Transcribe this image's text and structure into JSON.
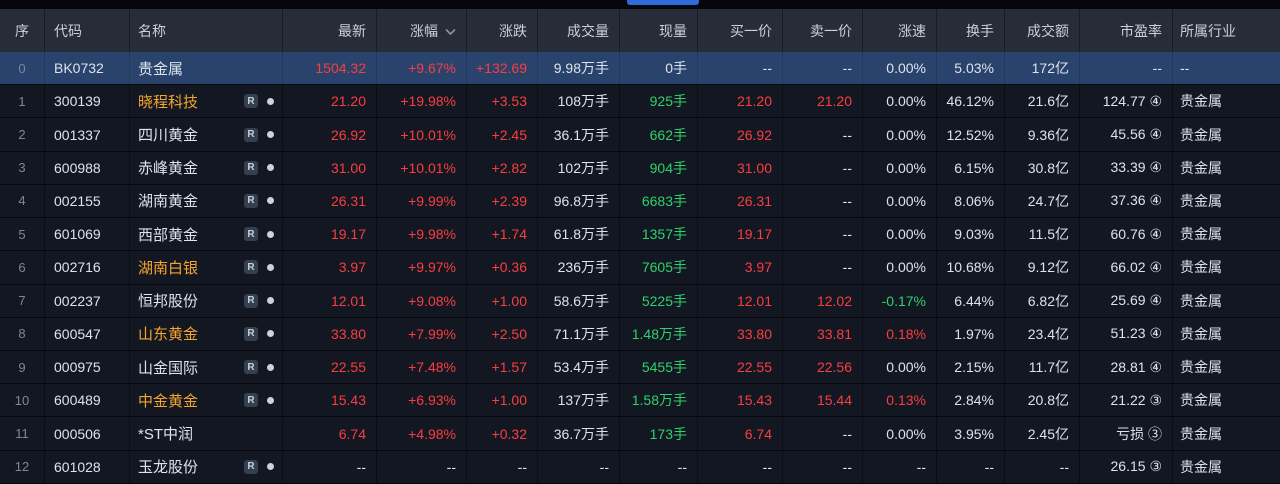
{
  "top_bar": {
    "active_tab_color": "#2f6bd9"
  },
  "colors": {
    "up_red": "#fa3d41",
    "down_green": "#2fd16c",
    "neutral_text": "#dde2ec",
    "highlight_name_orange": "#f6a62d",
    "selected_row_blue": "#29436c",
    "header_bg": "#272c39"
  },
  "table": {
    "r_badge_label": "R",
    "columns": [
      {
        "key": "seq",
        "label": "序"
      },
      {
        "key": "code",
        "label": "代码"
      },
      {
        "key": "name",
        "label": "名称"
      },
      {
        "key": "last",
        "label": "最新"
      },
      {
        "key": "change_pct",
        "label": "涨幅",
        "sort_icon": true
      },
      {
        "key": "change",
        "label": "涨跌"
      },
      {
        "key": "volume",
        "label": "成交量"
      },
      {
        "key": "cur_vol",
        "label": "现量"
      },
      {
        "key": "bid",
        "label": "买一价"
      },
      {
        "key": "ask",
        "label": "卖一价"
      },
      {
        "key": "speed",
        "label": "涨速"
      },
      {
        "key": "turnover",
        "label": "换手"
      },
      {
        "key": "amount",
        "label": "成交额"
      },
      {
        "key": "pe",
        "label": "市盈率"
      },
      {
        "key": "industry",
        "label": "所属行业"
      }
    ],
    "rows": [
      {
        "seq": "0",
        "code": "BK0732",
        "name": "贵金属",
        "name_color": "white",
        "r_badge": false,
        "dot": false,
        "selected": true,
        "cells": {
          "last": {
            "t": "1504.32",
            "c": "red"
          },
          "change_pct": {
            "t": "+9.67%",
            "c": "red"
          },
          "change": {
            "t": "+132.69",
            "c": "red"
          },
          "volume": {
            "t": "9.98万手",
            "c": "white"
          },
          "cur_vol": {
            "t": "0手",
            "c": "white"
          },
          "bid": {
            "t": "--",
            "c": "white"
          },
          "ask": {
            "t": "--",
            "c": "white"
          },
          "speed": {
            "t": "0.00%",
            "c": "white"
          },
          "turnover": {
            "t": "5.03%",
            "c": "white"
          },
          "amount": {
            "t": "172亿",
            "c": "white"
          },
          "pe": {
            "t": "--",
            "c": "white"
          },
          "industry": {
            "t": "--",
            "c": "white"
          }
        }
      },
      {
        "seq": "1",
        "code": "300139",
        "name": "晓程科技",
        "name_color": "orange",
        "r_badge": true,
        "dot": true,
        "selected": false,
        "cells": {
          "last": {
            "t": "21.20",
            "c": "red"
          },
          "change_pct": {
            "t": "+19.98%",
            "c": "red"
          },
          "change": {
            "t": "+3.53",
            "c": "red"
          },
          "volume": {
            "t": "108万手",
            "c": "white"
          },
          "cur_vol": {
            "t": "925手",
            "c": "green"
          },
          "bid": {
            "t": "21.20",
            "c": "red"
          },
          "ask": {
            "t": "21.20",
            "c": "red"
          },
          "speed": {
            "t": "0.00%",
            "c": "white"
          },
          "turnover": {
            "t": "46.12%",
            "c": "white"
          },
          "amount": {
            "t": "21.6亿",
            "c": "white"
          },
          "pe": {
            "t": "124.77 ④",
            "c": "white"
          },
          "industry": {
            "t": "贵金属",
            "c": "white"
          }
        }
      },
      {
        "seq": "2",
        "code": "001337",
        "name": "四川黄金",
        "name_color": "white",
        "r_badge": true,
        "dot": true,
        "selected": false,
        "cells": {
          "last": {
            "t": "26.92",
            "c": "red"
          },
          "change_pct": {
            "t": "+10.01%",
            "c": "red"
          },
          "change": {
            "t": "+2.45",
            "c": "red"
          },
          "volume": {
            "t": "36.1万手",
            "c": "white"
          },
          "cur_vol": {
            "t": "662手",
            "c": "green"
          },
          "bid": {
            "t": "26.92",
            "c": "red"
          },
          "ask": {
            "t": "--",
            "c": "white"
          },
          "speed": {
            "t": "0.00%",
            "c": "white"
          },
          "turnover": {
            "t": "12.52%",
            "c": "white"
          },
          "amount": {
            "t": "9.36亿",
            "c": "white"
          },
          "pe": {
            "t": "45.56 ④",
            "c": "white"
          },
          "industry": {
            "t": "贵金属",
            "c": "white"
          }
        }
      },
      {
        "seq": "3",
        "code": "600988",
        "name": "赤峰黄金",
        "name_color": "white",
        "r_badge": true,
        "dot": true,
        "selected": false,
        "cells": {
          "last": {
            "t": "31.00",
            "c": "red"
          },
          "change_pct": {
            "t": "+10.01%",
            "c": "red"
          },
          "change": {
            "t": "+2.82",
            "c": "red"
          },
          "volume": {
            "t": "102万手",
            "c": "white"
          },
          "cur_vol": {
            "t": "904手",
            "c": "green"
          },
          "bid": {
            "t": "31.00",
            "c": "red"
          },
          "ask": {
            "t": "--",
            "c": "white"
          },
          "speed": {
            "t": "0.00%",
            "c": "white"
          },
          "turnover": {
            "t": "6.15%",
            "c": "white"
          },
          "amount": {
            "t": "30.8亿",
            "c": "white"
          },
          "pe": {
            "t": "33.39 ④",
            "c": "white"
          },
          "industry": {
            "t": "贵金属",
            "c": "white"
          }
        }
      },
      {
        "seq": "4",
        "code": "002155",
        "name": "湖南黄金",
        "name_color": "white",
        "r_badge": true,
        "dot": true,
        "selected": false,
        "cells": {
          "last": {
            "t": "26.31",
            "c": "red"
          },
          "change_pct": {
            "t": "+9.99%",
            "c": "red"
          },
          "change": {
            "t": "+2.39",
            "c": "red"
          },
          "volume": {
            "t": "96.8万手",
            "c": "white"
          },
          "cur_vol": {
            "t": "6683手",
            "c": "green"
          },
          "bid": {
            "t": "26.31",
            "c": "red"
          },
          "ask": {
            "t": "--",
            "c": "white"
          },
          "speed": {
            "t": "0.00%",
            "c": "white"
          },
          "turnover": {
            "t": "8.06%",
            "c": "white"
          },
          "amount": {
            "t": "24.7亿",
            "c": "white"
          },
          "pe": {
            "t": "37.36 ④",
            "c": "white"
          },
          "industry": {
            "t": "贵金属",
            "c": "white"
          }
        }
      },
      {
        "seq": "5",
        "code": "601069",
        "name": "西部黄金",
        "name_color": "white",
        "r_badge": true,
        "dot": true,
        "selected": false,
        "cells": {
          "last": {
            "t": "19.17",
            "c": "red"
          },
          "change_pct": {
            "t": "+9.98%",
            "c": "red"
          },
          "change": {
            "t": "+1.74",
            "c": "red"
          },
          "volume": {
            "t": "61.8万手",
            "c": "white"
          },
          "cur_vol": {
            "t": "1357手",
            "c": "green"
          },
          "bid": {
            "t": "19.17",
            "c": "red"
          },
          "ask": {
            "t": "--",
            "c": "white"
          },
          "speed": {
            "t": "0.00%",
            "c": "white"
          },
          "turnover": {
            "t": "9.03%",
            "c": "white"
          },
          "amount": {
            "t": "11.5亿",
            "c": "white"
          },
          "pe": {
            "t": "60.76 ④",
            "c": "white"
          },
          "industry": {
            "t": "贵金属",
            "c": "white"
          }
        }
      },
      {
        "seq": "6",
        "code": "002716",
        "name": "湖南白银",
        "name_color": "orange",
        "r_badge": true,
        "dot": true,
        "selected": false,
        "cells": {
          "last": {
            "t": "3.97",
            "c": "red"
          },
          "change_pct": {
            "t": "+9.97%",
            "c": "red"
          },
          "change": {
            "t": "+0.36",
            "c": "red"
          },
          "volume": {
            "t": "236万手",
            "c": "white"
          },
          "cur_vol": {
            "t": "7605手",
            "c": "green"
          },
          "bid": {
            "t": "3.97",
            "c": "red"
          },
          "ask": {
            "t": "--",
            "c": "white"
          },
          "speed": {
            "t": "0.00%",
            "c": "white"
          },
          "turnover": {
            "t": "10.68%",
            "c": "white"
          },
          "amount": {
            "t": "9.12亿",
            "c": "white"
          },
          "pe": {
            "t": "66.02 ④",
            "c": "white"
          },
          "industry": {
            "t": "贵金属",
            "c": "white"
          }
        }
      },
      {
        "seq": "7",
        "code": "002237",
        "name": "恒邦股份",
        "name_color": "white",
        "r_badge": true,
        "dot": true,
        "selected": false,
        "cells": {
          "last": {
            "t": "12.01",
            "c": "red"
          },
          "change_pct": {
            "t": "+9.08%",
            "c": "red"
          },
          "change": {
            "t": "+1.00",
            "c": "red"
          },
          "volume": {
            "t": "58.6万手",
            "c": "white"
          },
          "cur_vol": {
            "t": "5225手",
            "c": "green"
          },
          "bid": {
            "t": "12.01",
            "c": "red"
          },
          "ask": {
            "t": "12.02",
            "c": "red"
          },
          "speed": {
            "t": "-0.17%",
            "c": "green"
          },
          "turnover": {
            "t": "6.44%",
            "c": "white"
          },
          "amount": {
            "t": "6.82亿",
            "c": "white"
          },
          "pe": {
            "t": "25.69 ④",
            "c": "white"
          },
          "industry": {
            "t": "贵金属",
            "c": "white"
          }
        }
      },
      {
        "seq": "8",
        "code": "600547",
        "name": "山东黄金",
        "name_color": "orange",
        "r_badge": true,
        "dot": true,
        "selected": false,
        "cells": {
          "last": {
            "t": "33.80",
            "c": "red"
          },
          "change_pct": {
            "t": "+7.99%",
            "c": "red"
          },
          "change": {
            "t": "+2.50",
            "c": "red"
          },
          "volume": {
            "t": "71.1万手",
            "c": "white"
          },
          "cur_vol": {
            "t": "1.48万手",
            "c": "green"
          },
          "bid": {
            "t": "33.80",
            "c": "red"
          },
          "ask": {
            "t": "33.81",
            "c": "red"
          },
          "speed": {
            "t": "0.18%",
            "c": "red"
          },
          "turnover": {
            "t": "1.97%",
            "c": "white"
          },
          "amount": {
            "t": "23.4亿",
            "c": "white"
          },
          "pe": {
            "t": "51.23 ④",
            "c": "white"
          },
          "industry": {
            "t": "贵金属",
            "c": "white"
          }
        }
      },
      {
        "seq": "9",
        "code": "000975",
        "name": "山金国际",
        "name_color": "white",
        "r_badge": true,
        "dot": true,
        "selected": false,
        "cells": {
          "last": {
            "t": "22.55",
            "c": "red"
          },
          "change_pct": {
            "t": "+7.48%",
            "c": "red"
          },
          "change": {
            "t": "+1.57",
            "c": "red"
          },
          "volume": {
            "t": "53.4万手",
            "c": "white"
          },
          "cur_vol": {
            "t": "5455手",
            "c": "green"
          },
          "bid": {
            "t": "22.55",
            "c": "red"
          },
          "ask": {
            "t": "22.56",
            "c": "red"
          },
          "speed": {
            "t": "0.00%",
            "c": "white"
          },
          "turnover": {
            "t": "2.15%",
            "c": "white"
          },
          "amount": {
            "t": "11.7亿",
            "c": "white"
          },
          "pe": {
            "t": "28.81 ④",
            "c": "white"
          },
          "industry": {
            "t": "贵金属",
            "c": "white"
          }
        }
      },
      {
        "seq": "10",
        "code": "600489",
        "name": "中金黄金",
        "name_color": "orange",
        "r_badge": true,
        "dot": true,
        "selected": false,
        "cells": {
          "last": {
            "t": "15.43",
            "c": "red"
          },
          "change_pct": {
            "t": "+6.93%",
            "c": "red"
          },
          "change": {
            "t": "+1.00",
            "c": "red"
          },
          "volume": {
            "t": "137万手",
            "c": "white"
          },
          "cur_vol": {
            "t": "1.58万手",
            "c": "green"
          },
          "bid": {
            "t": "15.43",
            "c": "red"
          },
          "ask": {
            "t": "15.44",
            "c": "red"
          },
          "speed": {
            "t": "0.13%",
            "c": "red"
          },
          "turnover": {
            "t": "2.84%",
            "c": "white"
          },
          "amount": {
            "t": "20.8亿",
            "c": "white"
          },
          "pe": {
            "t": "21.22 ③",
            "c": "white"
          },
          "industry": {
            "t": "贵金属",
            "c": "white"
          }
        }
      },
      {
        "seq": "11",
        "code": "000506",
        "name": "*ST中润",
        "name_color": "white",
        "r_badge": false,
        "dot": false,
        "selected": false,
        "cells": {
          "last": {
            "t": "6.74",
            "c": "red"
          },
          "change_pct": {
            "t": "+4.98%",
            "c": "red"
          },
          "change": {
            "t": "+0.32",
            "c": "red"
          },
          "volume": {
            "t": "36.7万手",
            "c": "white"
          },
          "cur_vol": {
            "t": "173手",
            "c": "green"
          },
          "bid": {
            "t": "6.74",
            "c": "red"
          },
          "ask": {
            "t": "--",
            "c": "white"
          },
          "speed": {
            "t": "0.00%",
            "c": "white"
          },
          "turnover": {
            "t": "3.95%",
            "c": "white"
          },
          "amount": {
            "t": "2.45亿",
            "c": "white"
          },
          "pe": {
            "t": "亏损 ③",
            "c": "white"
          },
          "industry": {
            "t": "贵金属",
            "c": "white"
          }
        }
      },
      {
        "seq": "12",
        "code": "601028",
        "name": "玉龙股份",
        "name_color": "white",
        "r_badge": true,
        "dot": true,
        "selected": false,
        "cells": {
          "last": {
            "t": "--",
            "c": "white"
          },
          "change_pct": {
            "t": "--",
            "c": "white"
          },
          "change": {
            "t": "--",
            "c": "white"
          },
          "volume": {
            "t": "--",
            "c": "white"
          },
          "cur_vol": {
            "t": "--",
            "c": "white"
          },
          "bid": {
            "t": "--",
            "c": "white"
          },
          "ask": {
            "t": "--",
            "c": "white"
          },
          "speed": {
            "t": "--",
            "c": "white"
          },
          "turnover": {
            "t": "--",
            "c": "white"
          },
          "amount": {
            "t": "--",
            "c": "white"
          },
          "pe": {
            "t": "26.15 ③",
            "c": "white"
          },
          "industry": {
            "t": "贵金属",
            "c": "white"
          }
        }
      }
    ]
  }
}
